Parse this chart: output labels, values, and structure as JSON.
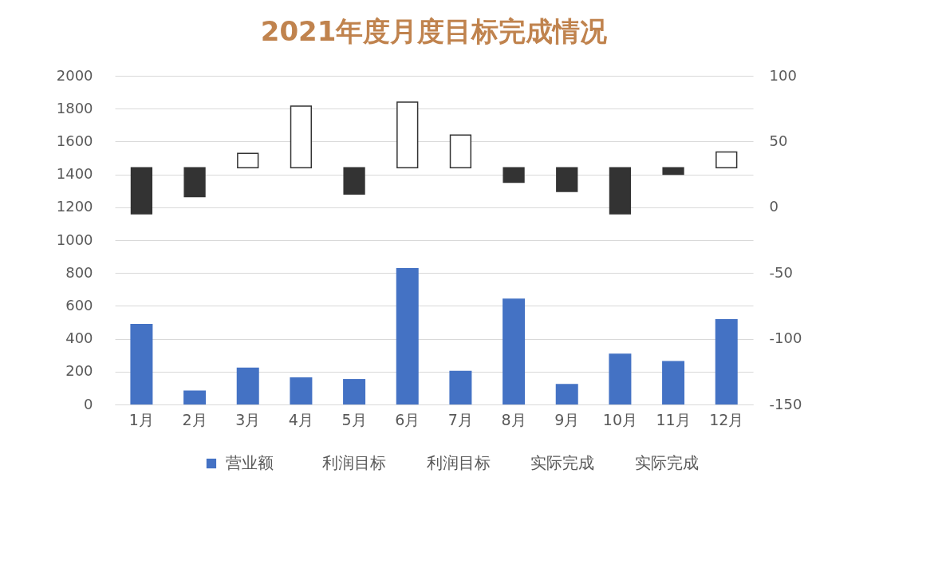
{
  "chart_data": {
    "type": "bar",
    "title": "2021年度月度目标完成情况",
    "categories": [
      "1月",
      "2月",
      "3月",
      "4月",
      "5月",
      "6月",
      "7月",
      "8月",
      "9月",
      "10月",
      "11月",
      "12月"
    ],
    "series": [
      {
        "name": "营业额",
        "color": "#4472c4",
        "values": [
          490,
          85,
          225,
          165,
          155,
          830,
          205,
          645,
          125,
          310,
          265,
          520
        ]
      },
      {
        "axis": "y2",
        "base": [
          30,
          30,
          30,
          30,
          30,
          30,
          30,
          30,
          30,
          30,
          30,
          30
        ],
        "values": [
          -35,
          -22,
          11,
          47,
          -20,
          50,
          25,
          -11,
          -18,
          -35,
          -5,
          12
        ],
        "colors": [
          "#333333",
          "#333333",
          "#ffffff",
          "#ffffff",
          "#333333",
          "#ffffff",
          "#ffffff",
          "#333333",
          "#333333",
          "#333333",
          "#333333",
          "#ffffff"
        ]
      }
    ],
    "ylim": [
      0,
      2000
    ],
    "yticks": [
      0,
      200,
      400,
      600,
      800,
      1000,
      1200,
      1400,
      1600,
      1800,
      2000
    ],
    "y2lim": [
      -150,
      100
    ],
    "y2ticks": [
      -150,
      -100,
      -50,
      0,
      50,
      100
    ],
    "grid": "y",
    "legend": "bottom",
    "annotations": [
      "利润目标",
      "利润目标",
      "实际完成",
      "实际完成"
    ]
  }
}
